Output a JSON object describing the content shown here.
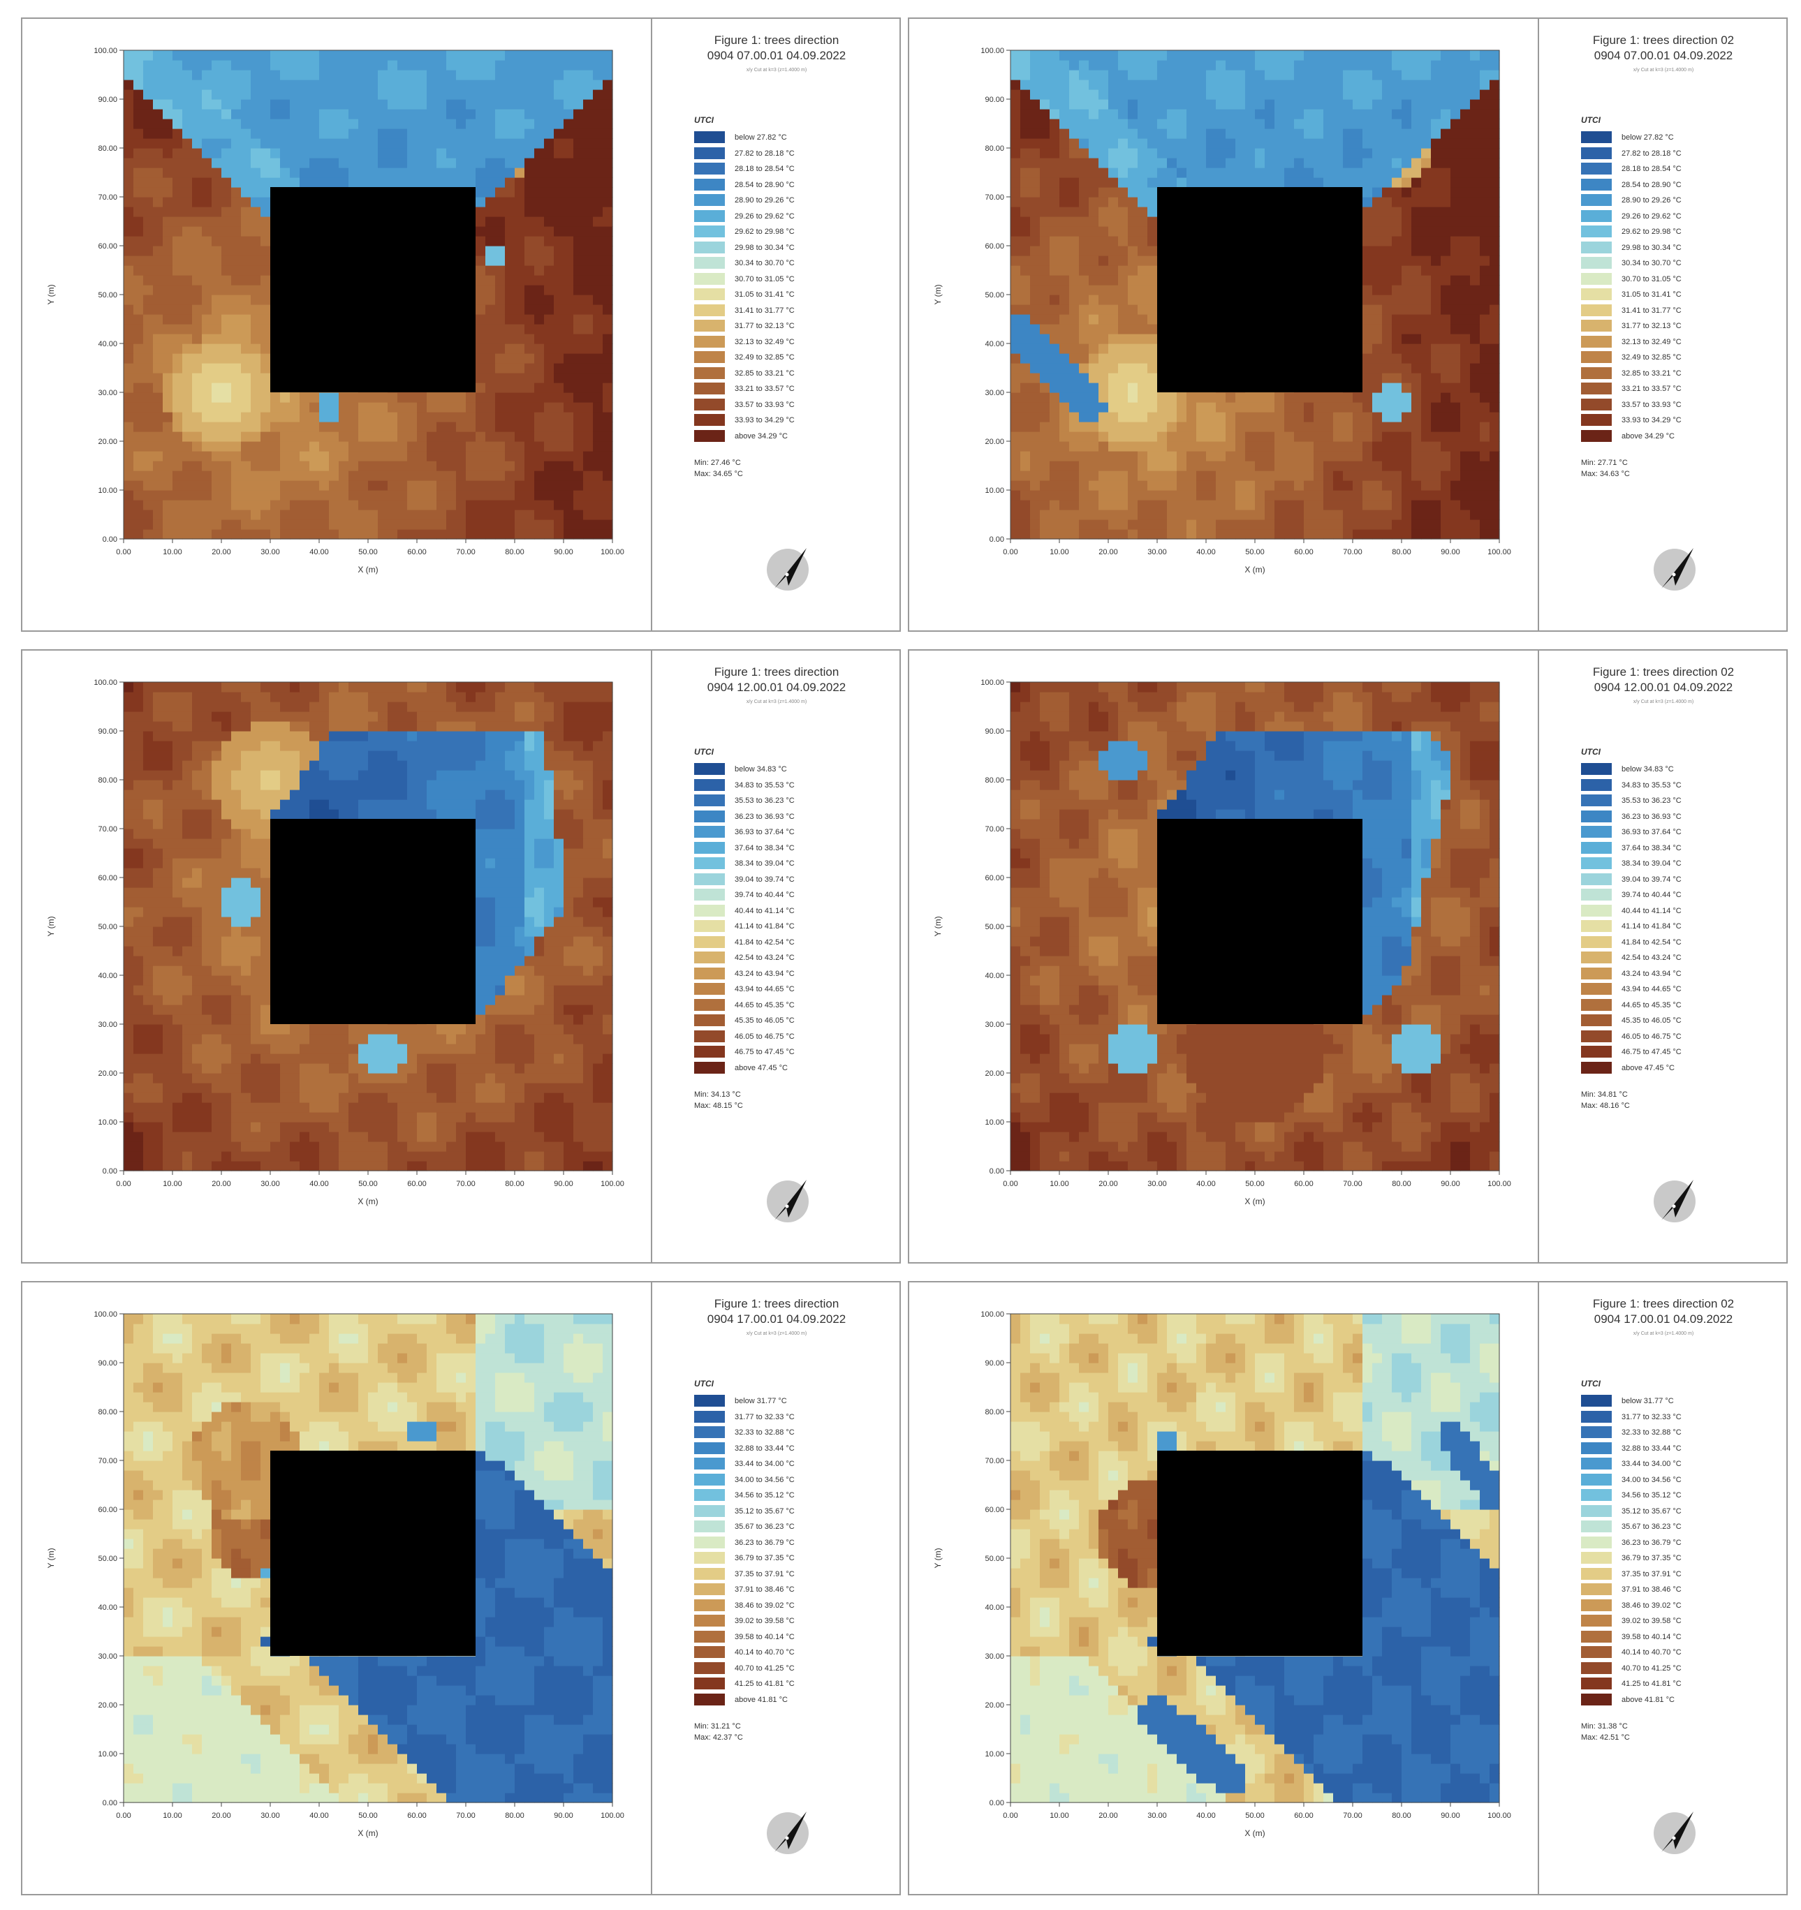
{
  "colors": {
    "ramp": [
      "#1f4e93",
      "#2c62a8",
      "#3673b6",
      "#3d86c4",
      "#4a99cf",
      "#5aaed8",
      "#72c1de",
      "#9bd4dc",
      "#bfe3d6",
      "#d9eac4",
      "#e5dfa4",
      "#e3cc86",
      "#d8b36d",
      "#cc9a57",
      "#bf8448",
      "#b0703d",
      "#a25d33",
      "#934a2a",
      "#84371f",
      "#6b2417"
    ],
    "building": "#000000"
  },
  "panels": [
    {
      "id": "p1",
      "title_line1": "Figure 1: trees direction",
      "title_line2": "0904 07.00.01 04.09.2022",
      "subtitle": "x/y Cut at k=3 (z=1.4000 m)",
      "legend_title": "UTCI",
      "legend_labels": [
        "below 27.82 °C",
        "27.82 to 28.18 °C",
        "28.18 to 28.54 °C",
        "28.54 to 28.90 °C",
        "28.90 to 29.26 °C",
        "29.26 to 29.62 °C",
        "29.62 to 29.98 °C",
        "29.98 to 30.34 °C",
        "30.34 to 30.70 °C",
        "30.70 to 31.05 °C",
        "31.05 to 31.41 °C",
        "31.41 to 31.77 °C",
        "31.77 to 32.13 °C",
        "32.13 to 32.49 °C",
        "32.49 to 32.85 °C",
        "32.85 to 33.21 °C",
        "33.21 to 33.57 °C",
        "33.57 to 33.93 °C",
        "33.93 to 34.29 °C",
        "above 34.29 °C"
      ],
      "min": "Min: 27.46 °C",
      "max": "Max: 34.65 °C"
    },
    {
      "id": "p2",
      "title_line1": "Figure 1: trees direction 02",
      "title_line2": "0904 07.00.01 04.09.2022",
      "subtitle": "x/y Cut at k=3 (z=1.4000 m)",
      "legend_title": "UTCI",
      "legend_labels": [
        "below 27.82 °C",
        "27.82 to 28.18 °C",
        "28.18 to 28.54 °C",
        "28.54 to 28.90 °C",
        "28.90 to 29.26 °C",
        "29.26 to 29.62 °C",
        "29.62 to 29.98 °C",
        "29.98 to 30.34 °C",
        "30.34 to 30.70 °C",
        "30.70 to 31.05 °C",
        "31.05 to 31.41 °C",
        "31.41 to 31.77 °C",
        "31.77 to 32.13 °C",
        "32.13 to 32.49 °C",
        "32.49 to 32.85 °C",
        "32.85 to 33.21 °C",
        "33.21 to 33.57 °C",
        "33.57 to 33.93 °C",
        "33.93 to 34.29 °C",
        "above 34.29 °C"
      ],
      "min": "Min: 27.71 °C",
      "max": "Max: 34.63 °C"
    },
    {
      "id": "p3",
      "title_line1": "Figure 1: trees direction",
      "title_line2": "0904 12.00.01 04.09.2022",
      "subtitle": "x/y Cut at k=3 (z=1.4000 m)",
      "legend_title": "UTCI",
      "legend_labels": [
        "below 34.83 °C",
        "34.83 to 35.53 °C",
        "35.53 to 36.23 °C",
        "36.23 to 36.93 °C",
        "36.93 to 37.64 °C",
        "37.64 to 38.34 °C",
        "38.34 to 39.04 °C",
        "39.04 to 39.74 °C",
        "39.74 to 40.44 °C",
        "40.44 to 41.14 °C",
        "41.14 to 41.84 °C",
        "41.84 to 42.54 °C",
        "42.54 to 43.24 °C",
        "43.24 to 43.94 °C",
        "43.94 to 44.65 °C",
        "44.65 to 45.35 °C",
        "45.35 to 46.05 °C",
        "46.05 to 46.75 °C",
        "46.75 to 47.45 °C",
        "above 47.45 °C"
      ],
      "min": "Min: 34.13 °C",
      "max": "Max: 48.15 °C"
    },
    {
      "id": "p4",
      "title_line1": "Figure 1: trees direction 02",
      "title_line2": "0904 12.00.01 04.09.2022",
      "subtitle": "x/y Cut at k=3 (z=1.4000 m)",
      "legend_title": "UTCI",
      "legend_labels": [
        "below 34.83 °C",
        "34.83 to 35.53 °C",
        "35.53 to 36.23 °C",
        "36.23 to 36.93 °C",
        "36.93 to 37.64 °C",
        "37.64 to 38.34 °C",
        "38.34 to 39.04 °C",
        "39.04 to 39.74 °C",
        "39.74 to 40.44 °C",
        "40.44 to 41.14 °C",
        "41.14 to 41.84 °C",
        "41.84 to 42.54 °C",
        "42.54 to 43.24 °C",
        "43.24 to 43.94 °C",
        "43.94 to 44.65 °C",
        "44.65 to 45.35 °C",
        "45.35 to 46.05 °C",
        "46.05 to 46.75 °C",
        "46.75 to 47.45 °C",
        "above 47.45 °C"
      ],
      "min": "Min: 34.81 °C",
      "max": "Max: 48.16 °C"
    },
    {
      "id": "p5",
      "title_line1": "Figure 1: trees direction",
      "title_line2": "0904 17.00.01 04.09.2022",
      "subtitle": "x/y Cut at k=3 (z=1.4000 m)",
      "legend_title": "UTCI",
      "legend_labels": [
        "below 31.77 °C",
        "31.77 to 32.33 °C",
        "32.33 to 32.88 °C",
        "32.88 to 33.44 °C",
        "33.44 to 34.00 °C",
        "34.00 to 34.56 °C",
        "34.56 to 35.12 °C",
        "35.12 to 35.67 °C",
        "35.67 to 36.23 °C",
        "36.23 to 36.79 °C",
        "36.79 to 37.35 °C",
        "37.35 to 37.91 °C",
        "37.91 to 38.46 °C",
        "38.46 to 39.02 °C",
        "39.02 to 39.58 °C",
        "39.58 to 40.14 °C",
        "40.14 to 40.70 °C",
        "40.70 to 41.25 °C",
        "41.25 to 41.81 °C",
        "above 41.81 °C"
      ],
      "min": "Min: 31.21 °C",
      "max": "Max: 42.37 °C"
    },
    {
      "id": "p6",
      "title_line1": "Figure 1: trees direction 02",
      "title_line2": "0904 17.00.01 04.09.2022",
      "subtitle": "x/y Cut at k=3 (z=1.4000 m)",
      "legend_title": "UTCI",
      "legend_labels": [
        "below 31.77 °C",
        "31.77 to 32.33 °C",
        "32.33 to 32.88 °C",
        "32.88 to 33.44 °C",
        "33.44 to 34.00 °C",
        "34.00 to 34.56 °C",
        "34.56 to 35.12 °C",
        "35.12 to 35.67 °C",
        "35.67 to 36.23 °C",
        "36.23 to 36.79 °C",
        "36.79 to 37.35 °C",
        "37.35 to 37.91 °C",
        "37.91 to 38.46 °C",
        "38.46 to 39.02 °C",
        "39.02 to 39.58 °C",
        "39.58 to 40.14 °C",
        "40.14 to 40.70 °C",
        "40.70 to 41.25 °C",
        "41.25 to 41.81 °C",
        "above 41.81 °C"
      ],
      "min": "Min: 31.38 °C",
      "max": "Max: 42.51 °C"
    }
  ],
  "chart_data": [
    {
      "type": "heatmap",
      "panel": "p1",
      "xlabel": "X (m)",
      "ylabel": "Y (m)",
      "xlim": [
        0,
        100
      ],
      "ylim": [
        0,
        100
      ],
      "x_ticks": [
        "0.00",
        "10.00",
        "20.00",
        "30.00",
        "40.00",
        "50.00",
        "60.00",
        "70.00",
        "80.00",
        "90.00",
        "100.00"
      ],
      "y_ticks": [
        "0.00",
        "10.00",
        "20.00",
        "30.00",
        "40.00",
        "50.00",
        "60.00",
        "70.00",
        "80.00",
        "90.00",
        "100.00"
      ],
      "building": {
        "x": [
          30,
          72
        ],
        "y": [
          30,
          72
        ]
      }
    },
    {
      "type": "heatmap",
      "panel": "p2",
      "xlabel": "X (m)",
      "ylabel": "Y (m)",
      "xlim": [
        0,
        100
      ],
      "ylim": [
        0,
        100
      ],
      "x_ticks": [
        "0.00",
        "10.00",
        "20.00",
        "30.00",
        "40.00",
        "50.00",
        "60.00",
        "70.00",
        "80.00",
        "90.00",
        "100.00"
      ],
      "y_ticks": [
        "0.00",
        "10.00",
        "20.00",
        "30.00",
        "40.00",
        "50.00",
        "60.00",
        "70.00",
        "80.00",
        "90.00",
        "100.00"
      ],
      "building": {
        "x": [
          30,
          72
        ],
        "y": [
          30,
          72
        ]
      }
    },
    {
      "type": "heatmap",
      "panel": "p3",
      "xlabel": "X (m)",
      "ylabel": "Y (m)",
      "xlim": [
        0,
        100
      ],
      "ylim": [
        0,
        100
      ],
      "x_ticks": [
        "0.00",
        "10.00",
        "20.00",
        "30.00",
        "40.00",
        "50.00",
        "60.00",
        "70.00",
        "80.00",
        "90.00",
        "100.00"
      ],
      "y_ticks": [
        "0.00",
        "10.00",
        "20.00",
        "30.00",
        "40.00",
        "50.00",
        "60.00",
        "70.00",
        "80.00",
        "90.00",
        "100.00"
      ],
      "building": {
        "x": [
          30,
          72
        ],
        "y": [
          30,
          72
        ]
      }
    },
    {
      "type": "heatmap",
      "panel": "p4",
      "xlabel": "X (m)",
      "ylabel": "Y (m)",
      "xlim": [
        0,
        100
      ],
      "ylim": [
        0,
        100
      ],
      "x_ticks": [
        "0.00",
        "10.00",
        "20.00",
        "30.00",
        "40.00",
        "50.00",
        "60.00",
        "70.00",
        "80.00",
        "90.00",
        "100.00"
      ],
      "y_ticks": [
        "0.00",
        "10.00",
        "20.00",
        "30.00",
        "40.00",
        "50.00",
        "60.00",
        "70.00",
        "80.00",
        "90.00",
        "100.00"
      ],
      "building": {
        "x": [
          30,
          72
        ],
        "y": [
          30,
          72
        ]
      }
    },
    {
      "type": "heatmap",
      "panel": "p5",
      "xlabel": "X (m)",
      "ylabel": "Y (m)",
      "xlim": [
        0,
        100
      ],
      "ylim": [
        0,
        100
      ],
      "x_ticks": [
        "0.00",
        "10.00",
        "20.00",
        "30.00",
        "40.00",
        "50.00",
        "60.00",
        "70.00",
        "80.00",
        "90.00",
        "100.00"
      ],
      "y_ticks": [
        "0.00",
        "10.00",
        "20.00",
        "30.00",
        "40.00",
        "50.00",
        "60.00",
        "70.00",
        "80.00",
        "90.00",
        "100.00"
      ],
      "building": {
        "x": [
          30,
          72
        ],
        "y": [
          30,
          72
        ]
      }
    },
    {
      "type": "heatmap",
      "panel": "p6",
      "xlabel": "X (m)",
      "ylabel": "Y (m)",
      "xlim": [
        0,
        100
      ],
      "ylim": [
        0,
        100
      ],
      "x_ticks": [
        "0.00",
        "10.00",
        "20.00",
        "30.00",
        "40.00",
        "50.00",
        "60.00",
        "70.00",
        "80.00",
        "90.00",
        "100.00"
      ],
      "y_ticks": [
        "0.00",
        "10.00",
        "20.00",
        "30.00",
        "40.00",
        "50.00",
        "60.00",
        "70.00",
        "80.00",
        "90.00",
        "100.00"
      ],
      "building": {
        "x": [
          30,
          72
        ],
        "y": [
          30,
          72
        ]
      }
    }
  ]
}
